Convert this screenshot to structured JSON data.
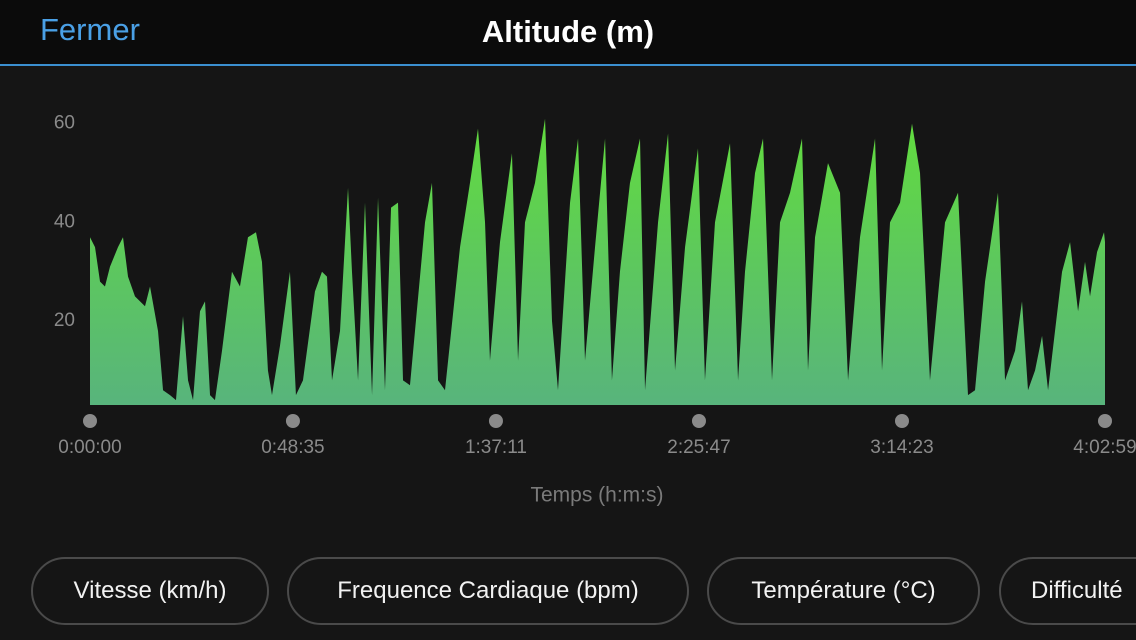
{
  "header": {
    "close": "Fermer",
    "title": "Altitude (m)"
  },
  "chart_data": {
    "type": "area",
    "xlabel": "Temps (h:m:s)",
    "color": "#62dc3e",
    "x": [
      0,
      72,
      144,
      215,
      287,
      402,
      474,
      546,
      646,
      790,
      862,
      977,
      1049,
      1149,
      1235,
      1336,
      1408,
      1480,
      1580,
      1652,
      1724,
      1795,
      1896,
      2039,
      2154,
      2269,
      2384,
      2470,
      2556,
      2614,
      2729,
      2872,
      2958,
      3059,
      3231,
      3332,
      3404,
      3476,
      3591,
      3706,
      3763,
      3850,
      3950,
      4051,
      4137,
      4237,
      4324,
      4424,
      4496,
      4596,
      4668,
      4812,
      4912,
      4999,
      5099,
      5315,
      5458,
      5573,
      5674,
      5745,
      5889,
      6061,
      6148,
      6248,
      6392,
      6536,
      6636,
      6722,
      6895,
      7010,
      7110,
      7254,
      7398,
      7497,
      7612,
      7756,
      7900,
      7972,
      8159,
      8303,
      8403,
      8547,
      8733,
      8833,
      8977,
      9193,
      9308,
      9408,
      9552,
      9667,
      9796,
      9911,
      10055,
      10227,
      10313,
      10414,
      10600,
      10773,
      10888,
      11060,
      11276,
      11376,
      11491,
      11635,
      11807,
      11922,
      12065,
      12281,
      12468,
      12611,
      12712,
      12856,
      13042,
      13143,
      13287,
      13387,
      13473,
      13574,
      13675,
      13761,
      13861,
      13962,
      14077,
      14192,
      14292,
      14364,
      14465,
      14565,
      14579
    ],
    "values": [
      37,
      35,
      28,
      27,
      31,
      35,
      37,
      29,
      25,
      23,
      27,
      18,
      6,
      5,
      4,
      21,
      8,
      4,
      22,
      24,
      5,
      4,
      14,
      30,
      27,
      37,
      38,
      32,
      10,
      5,
      15,
      30,
      5,
      8,
      26,
      30,
      29,
      8,
      18,
      47,
      30,
      8,
      44,
      5,
      45,
      6,
      43,
      44,
      8,
      7,
      18,
      40,
      48,
      8,
      6,
      35,
      48,
      59,
      40,
      12,
      36,
      54,
      12,
      40,
      48,
      61,
      20,
      6,
      44,
      57,
      12,
      35,
      57,
      8,
      30,
      48,
      57,
      6,
      40,
      58,
      10,
      35,
      55,
      8,
      40,
      56,
      8,
      30,
      50,
      57,
      8,
      40,
      46,
      57,
      10,
      37,
      52,
      46,
      8,
      37,
      57,
      10,
      40,
      44,
      60,
      50,
      8,
      40,
      46,
      5,
      6,
      28,
      46,
      8,
      14,
      24,
      6,
      10,
      17,
      6,
      18,
      30,
      36,
      22,
      32,
      25,
      34,
      38,
      36
    ],
    "xlim": [
      0,
      14579
    ],
    "ylim": [
      3,
      65
    ],
    "yticks": [
      20,
      40,
      60
    ],
    "xticks": [
      {
        "value": 0,
        "label": "0:00:00"
      },
      {
        "value": 2915,
        "label": "0:48:35"
      },
      {
        "value": 5831,
        "label": "1:37:11"
      },
      {
        "value": 8747,
        "label": "2:25:47"
      },
      {
        "value": 11663,
        "label": "3:14:23"
      },
      {
        "value": 14579,
        "label": "4:02:59"
      }
    ],
    "grid": false
  },
  "buttons": [
    "Vitesse (km/h)",
    "Frequence Cardiaque (bpm)",
    "Température (°C)",
    "Difficulté"
  ]
}
